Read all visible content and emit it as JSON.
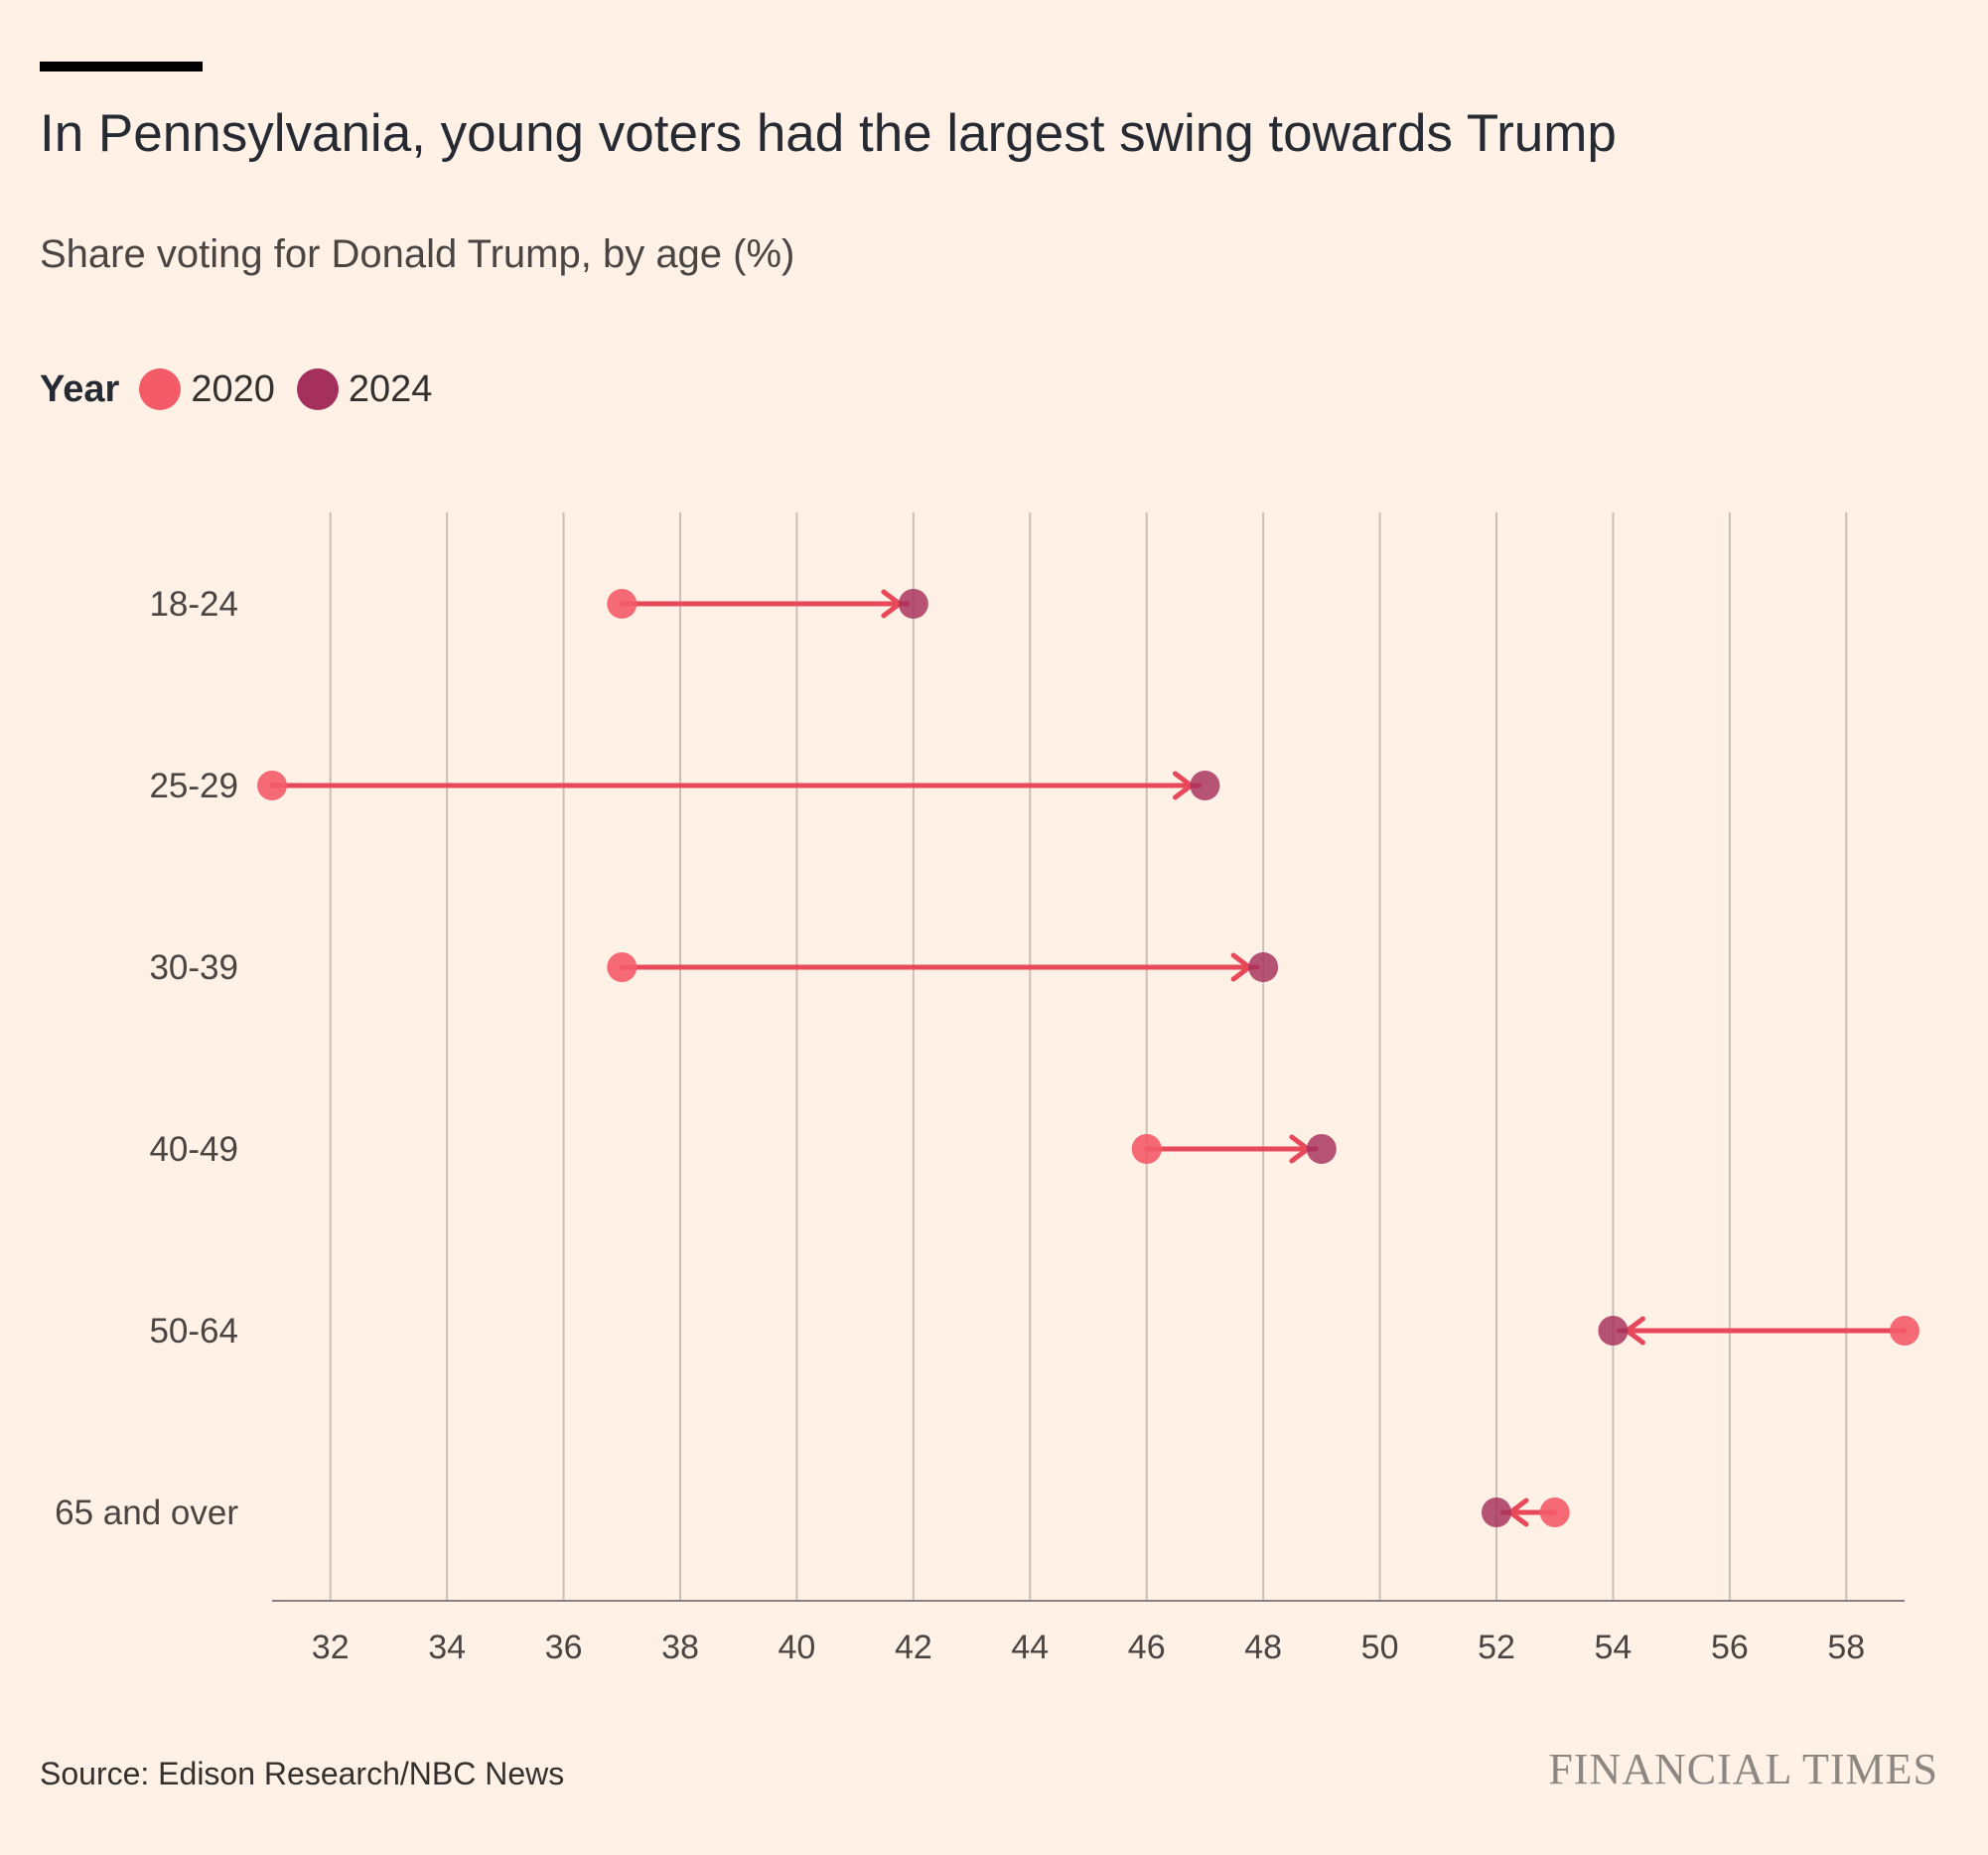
{
  "header": {
    "title": "In Pennsylvania, young voters had the largest swing towards Trump",
    "subtitle": "Share voting for Donald Trump, by age (%)"
  },
  "legend": {
    "label": "Year",
    "items": [
      {
        "name": "2020",
        "color": "#f45b68"
      },
      {
        "name": "2024",
        "color": "#a6305c"
      }
    ]
  },
  "footer": {
    "source": "Source: Edison Research/NBC News",
    "brand": "FINANCIAL TIMES"
  },
  "colors": {
    "background": "#fff1e5",
    "y2020": "#f45b68",
    "y2024": "#a6305c",
    "arrow": "#e8495a",
    "grid": "#c8bfb8",
    "axis": "#8b817a"
  },
  "chart_data": {
    "type": "dumbbell-arrow",
    "title": "In Pennsylvania, young voters had the largest swing towards Trump",
    "subtitle": "Share voting for Donald Trump, by age (%)",
    "xlabel": "",
    "ylabel": "",
    "xlim": [
      31,
      59
    ],
    "xticks": [
      32,
      34,
      36,
      38,
      40,
      42,
      44,
      46,
      48,
      50,
      52,
      54,
      56,
      58
    ],
    "grid": true,
    "categories": [
      "18-24",
      "25-29",
      "30-39",
      "40-49",
      "50-64",
      "65 and over"
    ],
    "series": [
      {
        "name": "2020",
        "values": [
          37,
          31,
          37,
          46,
          59,
          53
        ]
      },
      {
        "name": "2024",
        "values": [
          42,
          47,
          48,
          49,
          54,
          52
        ]
      }
    ]
  }
}
